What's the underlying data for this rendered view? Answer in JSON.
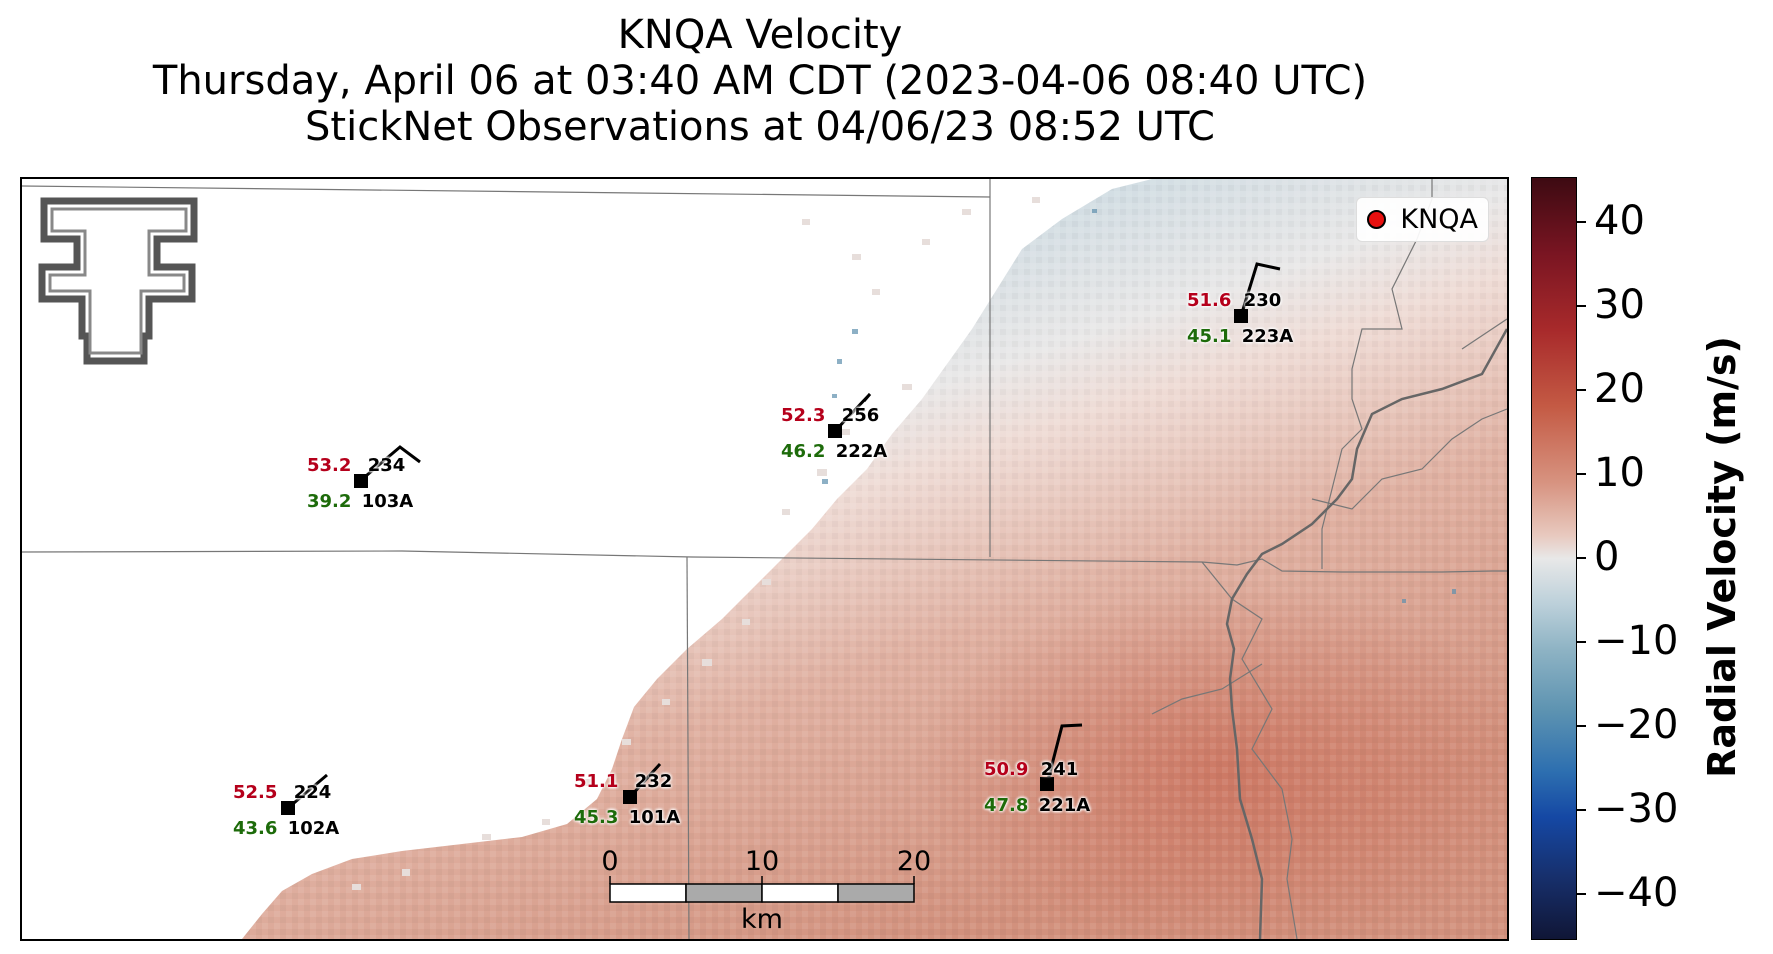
{
  "title": {
    "line1": "KNQA Velocity",
    "line2": "Thursday, April 06 at 03:40 AM CDT (2023-04-06 08:40 UTC)",
    "line3": "StickNet Observations at 04/06/23 08:52 UTC"
  },
  "legend": {
    "label": "KNQA",
    "marker_color": "#e8100f"
  },
  "stations": [
    {
      "id": "103A",
      "temp": "53.2",
      "dewpoint": "39.2",
      "direction": "234"
    },
    {
      "id": "222A",
      "temp": "52.3",
      "dewpoint": "46.2",
      "direction": "256"
    },
    {
      "id": "223A",
      "temp": "51.6",
      "dewpoint": "45.1",
      "direction": "230"
    },
    {
      "id": "102A",
      "temp": "52.5",
      "dewpoint": "43.6",
      "direction": "224"
    },
    {
      "id": "101A",
      "temp": "51.1",
      "dewpoint": "45.3",
      "direction": "232"
    },
    {
      "id": "221A",
      "temp": "50.9",
      "dewpoint": "47.8",
      "direction": "241"
    }
  ],
  "scale_bar": {
    "ticks": [
      "0",
      "10",
      "20"
    ],
    "unit": "km"
  },
  "colorbar": {
    "label": "Radial Velocity (m/s)",
    "ticks": [
      "40",
      "30",
      "20",
      "10",
      "0",
      "−10",
      "−20",
      "−30",
      "−40"
    ],
    "range": [
      -45,
      45
    ],
    "colors": {
      "max": "#3d0a12",
      "mid": "#e8e8e8",
      "min": "#101636"
    }
  },
  "logo": {
    "name": "Texas Tech Double T"
  }
}
